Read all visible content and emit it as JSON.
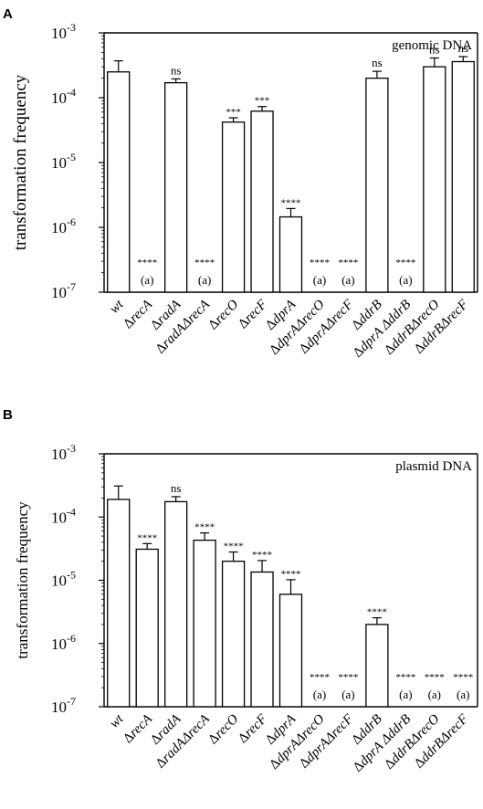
{
  "chart_data": [
    {
      "panel": "A",
      "type": "bar",
      "legend_text": "genomic DNA",
      "ylabel": "transformation frequency",
      "yscale": "log",
      "ylim": [
        1e-07,
        0.001
      ],
      "yticks": [
        {
          "base": "10",
          "exp": "-3"
        },
        {
          "base": "10",
          "exp": "-4"
        },
        {
          "base": "10",
          "exp": "-5"
        },
        {
          "base": "10",
          "exp": "-6"
        },
        {
          "base": "10",
          "exp": "-7"
        }
      ],
      "categories": [
        {
          "pre": "",
          "text": "wt"
        },
        {
          "pre": "Δ",
          "text": "recA"
        },
        {
          "pre": "Δ",
          "text": "radA"
        },
        {
          "pre": "Δ",
          "text": "radAΔrecA"
        },
        {
          "pre": "Δ",
          "text": "recO"
        },
        {
          "pre": "Δ",
          "text": "recF"
        },
        {
          "pre": "Δ",
          "text": "dprA"
        },
        {
          "pre": "Δ",
          "text": "dprAΔrecO"
        },
        {
          "pre": "Δ",
          "text": "dprAΔrecF"
        },
        {
          "pre": "Δ",
          "text": "ddrB"
        },
        {
          "pre": "Δ",
          "text": "dprA ΔddrB"
        },
        {
          "pre": "Δ",
          "text": "ddrBΔrecO"
        },
        {
          "pre": "Δ",
          "text": "ddrBΔrecF"
        }
      ],
      "values": [
        0.00025,
        null,
        0.00017,
        null,
        4.2e-05,
        6.2e-05,
        1.45e-06,
        null,
        null,
        0.0002,
        null,
        0.0003,
        0.00036
      ],
      "error_upper": [
        0.00037,
        null,
        0.000195,
        null,
        4.9e-05,
        7.3e-05,
        1.95e-06,
        null,
        null,
        0.000255,
        null,
        0.00041,
        0.00043
      ],
      "significance": [
        "",
        "****",
        "ns",
        "****",
        "***",
        "***",
        "****",
        "****",
        "****",
        "ns",
        "****",
        "ns",
        "ns"
      ],
      "undetected_label": "(a)"
    },
    {
      "panel": "B",
      "type": "bar",
      "legend_text": "plasmid DNA",
      "ylabel": "transformation frequency",
      "yscale": "log",
      "ylim": [
        1e-07,
        0.001
      ],
      "yticks": [
        {
          "base": "10",
          "exp": "-3"
        },
        {
          "base": "10",
          "exp": "-4"
        },
        {
          "base": "10",
          "exp": "-5"
        },
        {
          "base": "10",
          "exp": "-6"
        },
        {
          "base": "10",
          "exp": "-7"
        }
      ],
      "categories": [
        {
          "pre": "",
          "text": "wt"
        },
        {
          "pre": "Δ",
          "text": "recA"
        },
        {
          "pre": "Δ",
          "text": "radA"
        },
        {
          "pre": "Δ",
          "text": "radAΔrecA"
        },
        {
          "pre": "Δ",
          "text": "recO"
        },
        {
          "pre": "Δ",
          "text": "recF"
        },
        {
          "pre": "Δ",
          "text": "dprA"
        },
        {
          "pre": "Δ",
          "text": "dprAΔrecO"
        },
        {
          "pre": "Δ",
          "text": "dprAΔrecF"
        },
        {
          "pre": "Δ",
          "text": "ddrB"
        },
        {
          "pre": "Δ",
          "text": "dprA ΔddrB"
        },
        {
          "pre": "Δ",
          "text": "ddrBΔrecO"
        },
        {
          "pre": "Δ",
          "text": "ddrBΔrecF"
        }
      ],
      "values": [
        0.00019,
        3.1e-05,
        0.000175,
        4.3e-05,
        2e-05,
        1.35e-05,
        6e-06,
        null,
        null,
        2e-06,
        null,
        null,
        null
      ],
      "error_upper": [
        0.00031,
        3.8e-05,
        0.00021,
        5.6e-05,
        2.8e-05,
        2.05e-05,
        1.02e-05,
        null,
        null,
        2.55e-06,
        null,
        null,
        null
      ],
      "significance": [
        "",
        "****",
        "ns",
        "****",
        "****",
        "****",
        "****",
        "****",
        "****",
        "****",
        "****",
        "****",
        "****"
      ],
      "undetected_label": "(a)"
    }
  ]
}
